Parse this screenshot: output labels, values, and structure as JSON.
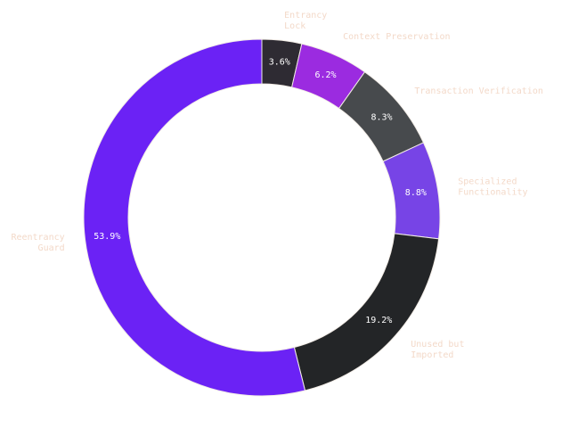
{
  "chart_data": {
    "type": "pie",
    "style": "donut",
    "slices": [
      {
        "label": "Entrancy\nLock",
        "value": 3.6,
        "pct_label": "3.6%",
        "color": "#2e2b33"
      },
      {
        "label": "Context Preservation",
        "value": 6.2,
        "pct_label": "6.2%",
        "color": "#9b2be0"
      },
      {
        "label": "Transaction Verification",
        "value": 8.3,
        "pct_label": "8.3%",
        "color": "#474a4d"
      },
      {
        "label": "Specialized\nFunctionality",
        "value": 8.8,
        "pct_label": "8.8%",
        "color": "#7744e6"
      },
      {
        "label": "Unused but\nImported",
        "value": 19.2,
        "pct_label": "19.2%",
        "color": "#232527"
      },
      {
        "label": "Reentrancy\nGuard",
        "value": 53.9,
        "pct_label": "53.9%",
        "color": "#6b22f5"
      }
    ],
    "start": "top",
    "direction": "clockwise"
  }
}
